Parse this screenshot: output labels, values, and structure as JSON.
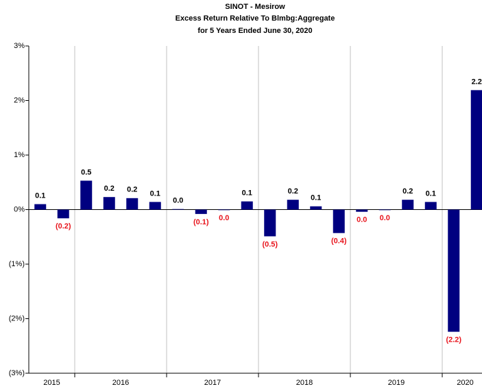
{
  "chart_data": {
    "type": "bar",
    "title": [
      "SINOT - Mesirow",
      "Excess Return Relative To Blmbg:Aggregate",
      "for 5 Years Ended June 30, 2020"
    ],
    "categories": [
      null,
      null,
      null,
      null,
      null,
      null,
      null,
      null,
      null,
      null,
      null,
      null,
      null,
      null,
      null,
      null,
      null,
      null,
      null,
      null
    ],
    "groups": [
      {
        "label": "2015",
        "size": 2
      },
      {
        "label": "2016",
        "size": 4
      },
      {
        "label": "2017",
        "size": 4
      },
      {
        "label": "2018",
        "size": 4
      },
      {
        "label": "2019",
        "size": 4
      },
      {
        "label": "2020",
        "size": 2
      }
    ],
    "values": [
      0.1,
      -0.16,
      0.53,
      0.23,
      0.21,
      0.14,
      0.01,
      -0.08,
      -0.01,
      0.15,
      -0.49,
      0.18,
      0.06,
      -0.43,
      -0.04,
      -0.01,
      0.18,
      0.14,
      -2.24,
      2.19
    ],
    "value_labels": [
      "0.1",
      "(0.2)",
      "0.5",
      "0.2",
      "0.2",
      "0.1",
      "0.0",
      "(0.1)",
      "0.0",
      "0.1",
      "(0.5)",
      "0.2",
      "0.1",
      "(0.4)",
      "0.0",
      "0.0",
      "0.2",
      "0.1",
      "(2.2)",
      "2.2"
    ],
    "color": "#000080",
    "positive_label_color": "#000000",
    "negative_label_color": "#e8141c",
    "ylim": [
      -3,
      3
    ],
    "yticks": [
      {
        "value": -3,
        "label": "(3%)"
      },
      {
        "value": -2,
        "label": "(2%)"
      },
      {
        "value": -1,
        "label": "(1%)"
      },
      {
        "value": 0,
        "label": "0%"
      },
      {
        "value": 1,
        "label": "1%"
      },
      {
        "value": 2,
        "label": "2%"
      },
      {
        "value": 3,
        "label": "3%"
      }
    ],
    "grid": true
  }
}
